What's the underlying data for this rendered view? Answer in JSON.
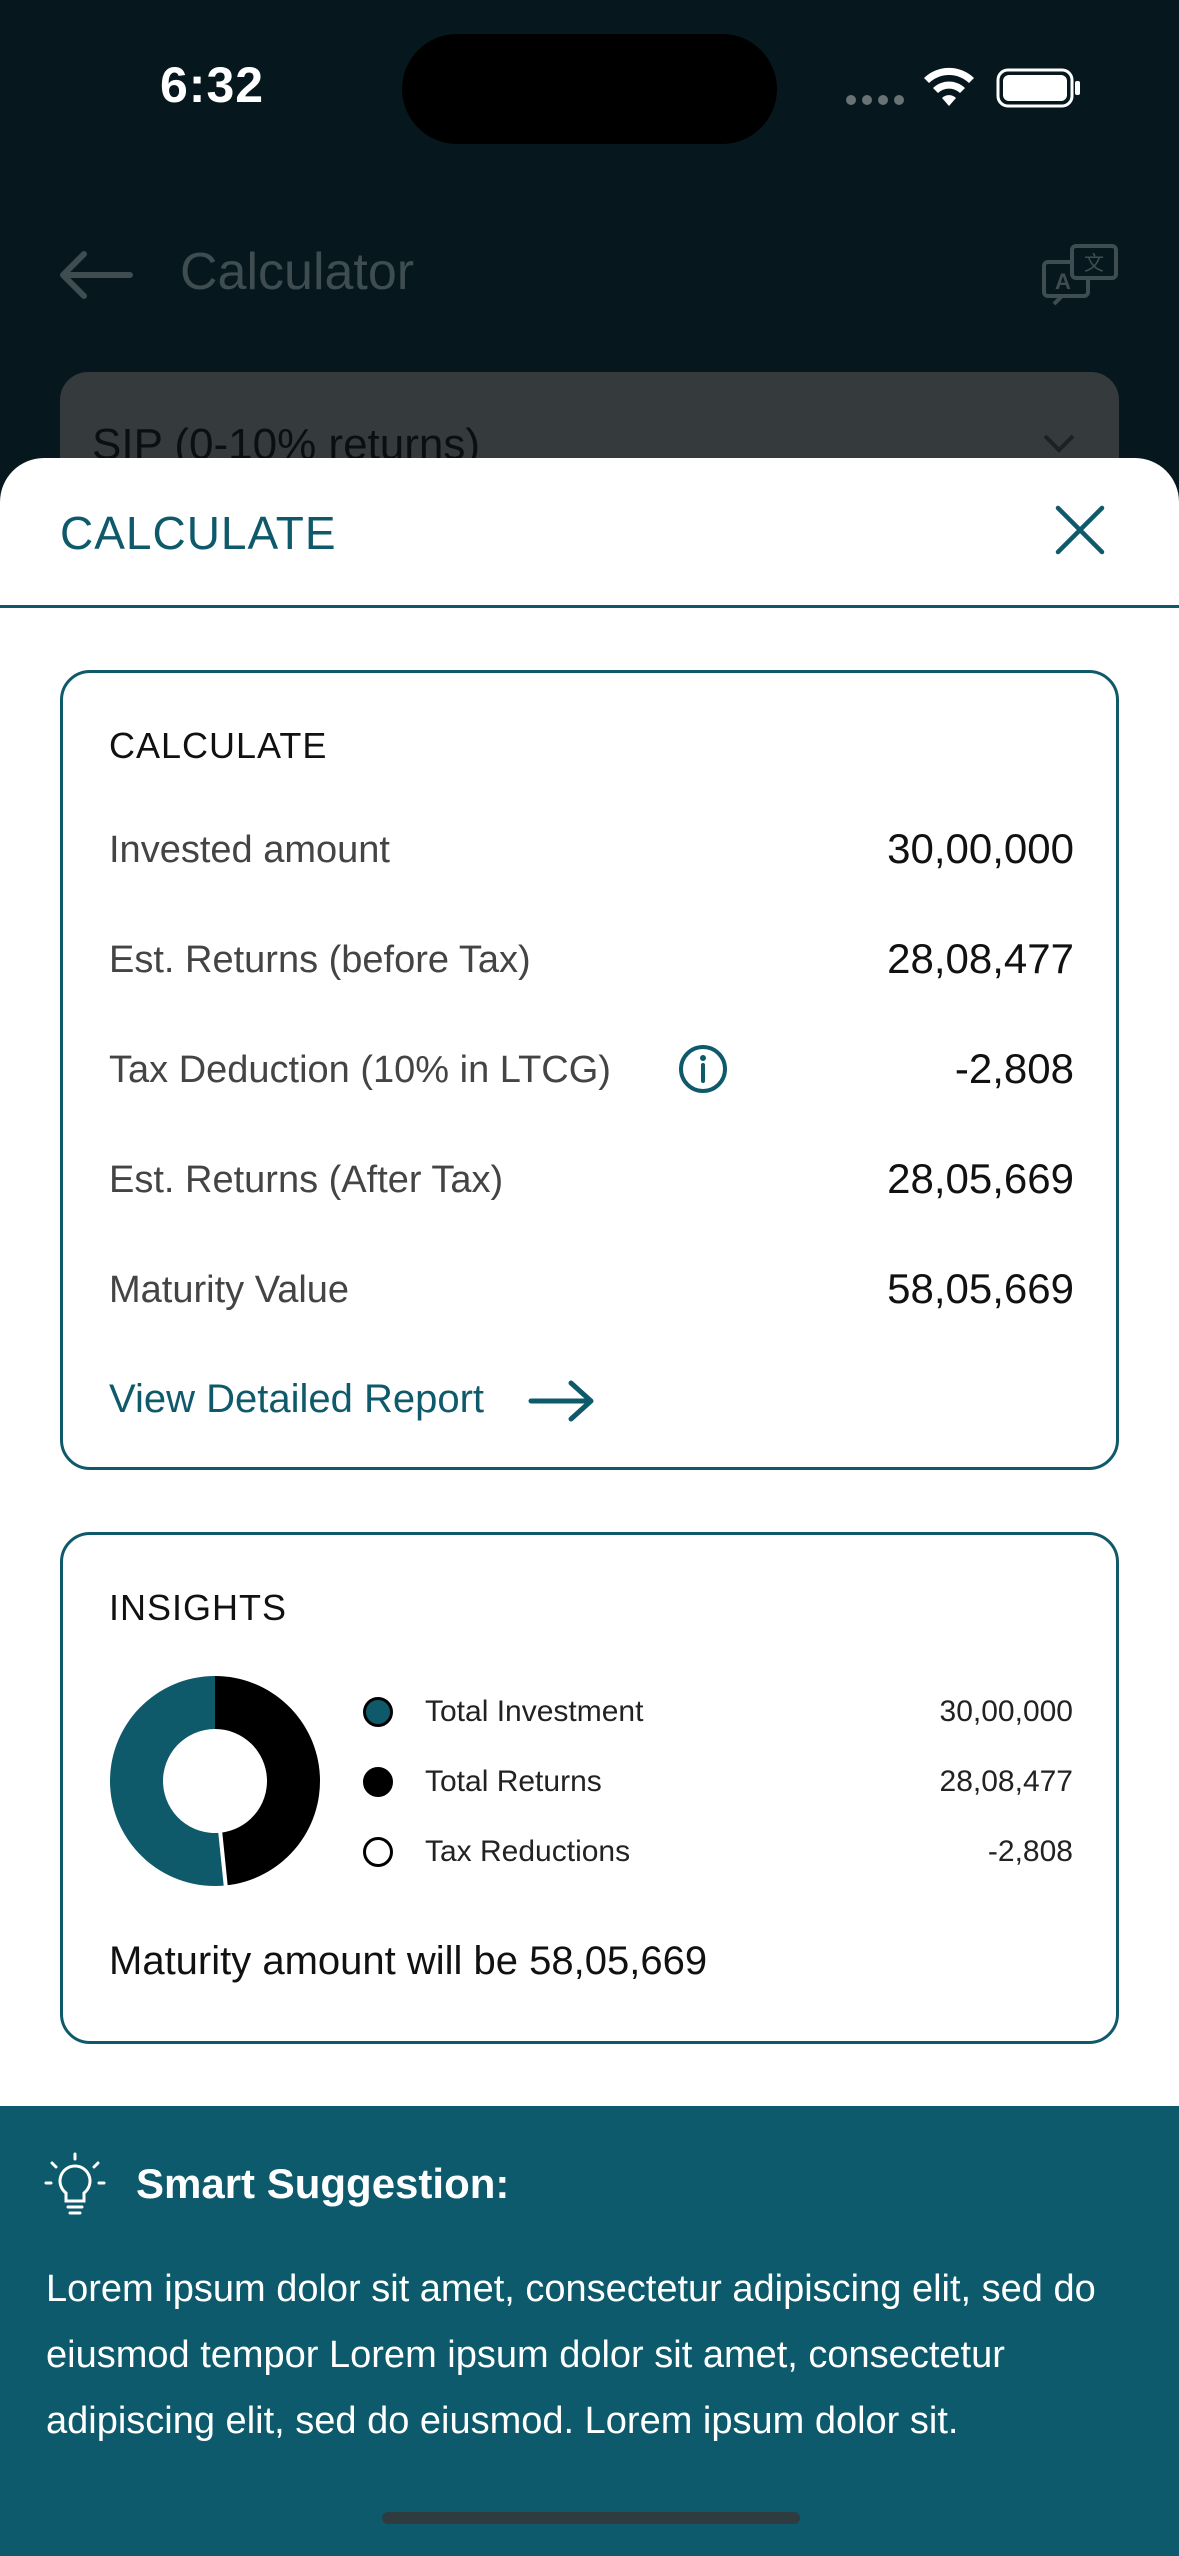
{
  "status_bar": {
    "time": "6:32"
  },
  "background": {
    "header_title": "Calculator",
    "select_value": "SIP (0-10% returns)"
  },
  "sheet": {
    "title": "CALCULATE",
    "calculate_card": {
      "heading": "CALCULATE",
      "rows": [
        {
          "label": "Invested amount",
          "value": "30,00,000"
        },
        {
          "label": "Est. Returns (before Tax)",
          "value": "28,08,477"
        },
        {
          "label": "Tax Deduction (10% in LTCG)",
          "value": "-2,808"
        },
        {
          "label": "Est. Returns (After Tax)",
          "value": "28,05,669"
        },
        {
          "label": "Maturity Value",
          "value": "58,05,669"
        }
      ],
      "link_label": "View Detailed Report"
    },
    "insights_card": {
      "heading": "INSIGHTS",
      "legend": [
        {
          "label": "Total Investment",
          "value": "30,00,000",
          "color": "#0e5a6b"
        },
        {
          "label": "Total Returns",
          "value": "28,08,477",
          "color": "#000000"
        },
        {
          "label": "Tax Reductions",
          "value": "-2,808",
          "color": "#ffffff"
        }
      ],
      "maturity_text": "Maturity amount will be 58,05,669"
    }
  },
  "chart_data": {
    "type": "pie",
    "categories": [
      "Total Investment",
      "Total Returns",
      "Tax Reductions"
    ],
    "values": [
      3000000,
      2808477,
      2808
    ],
    "colors": [
      "#0e5a6b",
      "#000000",
      "#ffffff"
    ]
  },
  "suggestion": {
    "title": "Smart Suggestion:",
    "body": "Lorem ipsum dolor sit amet, consectetur adipiscing elit, sed do eiusmod tempor Lorem ipsum dolor sit amet, consectetur adipiscing elit, sed do eiusmod.  Lorem ipsum dolor sit."
  },
  "colors": {
    "accent": "#0e5a6b",
    "background_dim": "#06181e"
  }
}
